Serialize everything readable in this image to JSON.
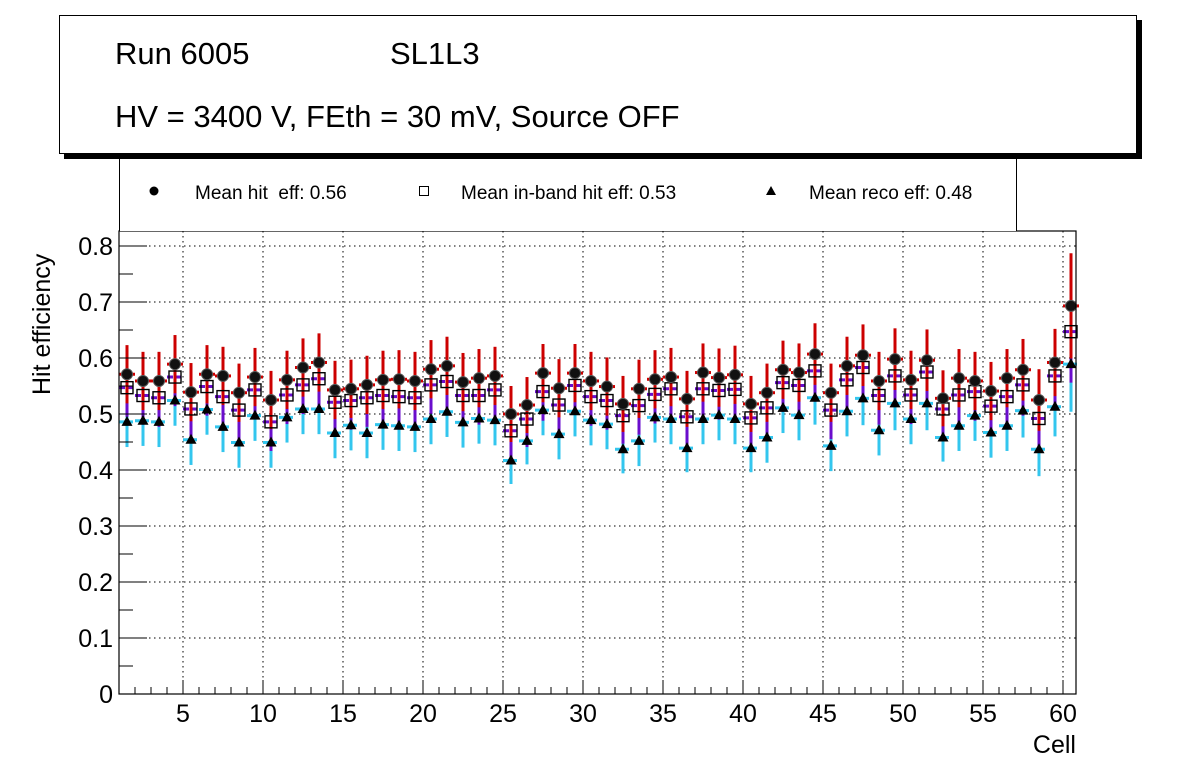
{
  "title_box": {
    "line1_run": "Run 6005",
    "line1_layer": "SL1L3",
    "line2": "HV = 3400 V, FEth = 30 mV, Source OFF"
  },
  "legend": {
    "items": [
      {
        "label": "Mean hit  eff: 0.56",
        "marker": "filled-circle"
      },
      {
        "label": "Mean in-band hit eff: 0.53",
        "marker": "open-square"
      },
      {
        "label": "Mean reco eff: 0.48",
        "marker": "filled-triangle"
      }
    ]
  },
  "chart_data": {
    "type": "scatter",
    "title": "Run 6005 SL1L3 — HV = 3400 V, FEth = 30 mV, Source OFF",
    "xlabel": "Cell",
    "ylabel": "Hit efficiency",
    "xlim": [
      1,
      61.3
    ],
    "ylim": [
      0,
      0.825
    ],
    "x_ticks": [
      5,
      10,
      15,
      20,
      25,
      30,
      35,
      40,
      45,
      50,
      55,
      60
    ],
    "y_ticks": [
      0,
      0.1,
      0.2,
      0.3,
      0.4,
      0.5,
      0.6,
      0.7,
      0.8
    ],
    "y_tick_labels": [
      "0",
      "0.1",
      "0.2",
      "0.3",
      "0.4",
      "0.5",
      "0.6",
      "0.7",
      "0.8"
    ],
    "grid": true,
    "legend_position": "top",
    "x": [
      1,
      2,
      3,
      4,
      5,
      6,
      7,
      8,
      9,
      10,
      11,
      12,
      13,
      14,
      15,
      16,
      17,
      18,
      19,
      20,
      21,
      22,
      23,
      24,
      25,
      26,
      27,
      28,
      29,
      30,
      31,
      32,
      33,
      34,
      35,
      36,
      37,
      38,
      39,
      40,
      41,
      42,
      43,
      44,
      45,
      46,
      47,
      48,
      49,
      50,
      51,
      52,
      53,
      54,
      55,
      56,
      57,
      58,
      59,
      60
    ],
    "series": [
      {
        "name": "Mean hit  eff: 0.56",
        "marker": "filled-circle",
        "error_color": "#cc0000",
        "values": [
          0.571,
          0.559,
          0.559,
          0.589,
          0.539,
          0.571,
          0.568,
          0.538,
          0.566,
          0.525,
          0.561,
          0.583,
          0.592,
          0.543,
          0.545,
          0.552,
          0.561,
          0.562,
          0.559,
          0.58,
          0.586,
          0.557,
          0.564,
          0.568,
          0.5,
          0.516,
          0.573,
          0.546,
          0.573,
          0.559,
          0.549,
          0.518,
          0.545,
          0.562,
          0.566,
          0.527,
          0.574,
          0.565,
          0.57,
          0.518,
          0.538,
          0.579,
          0.574,
          0.607,
          0.538,
          0.586,
          0.605,
          0.559,
          0.598,
          0.561,
          0.596,
          0.528,
          0.564,
          0.559,
          0.541,
          0.564,
          0.579,
          0.525,
          0.592,
          0.693
        ],
        "errors": [
          0.052,
          0.052,
          0.052,
          0.052,
          0.052,
          0.052,
          0.052,
          0.052,
          0.052,
          0.052,
          0.052,
          0.052,
          0.052,
          0.052,
          0.052,
          0.052,
          0.052,
          0.052,
          0.052,
          0.052,
          0.052,
          0.052,
          0.052,
          0.052,
          0.05,
          0.05,
          0.052,
          0.052,
          0.052,
          0.052,
          0.052,
          0.05,
          0.052,
          0.052,
          0.052,
          0.05,
          0.052,
          0.052,
          0.052,
          0.05,
          0.052,
          0.052,
          0.052,
          0.055,
          0.052,
          0.052,
          0.055,
          0.052,
          0.055,
          0.052,
          0.055,
          0.05,
          0.052,
          0.052,
          0.052,
          0.052,
          0.055,
          0.055,
          0.06,
          0.094
        ]
      },
      {
        "name": "Mean in-band hit eff: 0.53",
        "marker": "open-square",
        "error_color": "#6a0dcc",
        "values": [
          0.547,
          0.533,
          0.529,
          0.566,
          0.509,
          0.549,
          0.531,
          0.507,
          0.543,
          0.486,
          0.534,
          0.552,
          0.563,
          0.521,
          0.524,
          0.529,
          0.533,
          0.531,
          0.529,
          0.552,
          0.558,
          0.533,
          0.533,
          0.543,
          0.47,
          0.491,
          0.54,
          0.516,
          0.551,
          0.531,
          0.524,
          0.497,
          0.515,
          0.535,
          0.545,
          0.495,
          0.545,
          0.542,
          0.544,
          0.493,
          0.511,
          0.556,
          0.551,
          0.577,
          0.507,
          0.561,
          0.583,
          0.533,
          0.568,
          0.534,
          0.575,
          0.509,
          0.534,
          0.54,
          0.514,
          0.531,
          0.552,
          0.492,
          0.568,
          0.647
        ],
        "errors": [
          0.052,
          0.052,
          0.052,
          0.052,
          0.052,
          0.052,
          0.052,
          0.052,
          0.052,
          0.052,
          0.052,
          0.052,
          0.052,
          0.052,
          0.052,
          0.052,
          0.052,
          0.052,
          0.052,
          0.052,
          0.052,
          0.052,
          0.052,
          0.052,
          0.05,
          0.05,
          0.052,
          0.052,
          0.052,
          0.052,
          0.052,
          0.05,
          0.052,
          0.052,
          0.052,
          0.05,
          0.052,
          0.052,
          0.052,
          0.05,
          0.052,
          0.052,
          0.052,
          0.055,
          0.052,
          0.052,
          0.055,
          0.052,
          0.055,
          0.052,
          0.055,
          0.05,
          0.052,
          0.052,
          0.052,
          0.052,
          0.055,
          0.055,
          0.06,
          0.091
        ]
      },
      {
        "name": "Mean reco eff: 0.48",
        "marker": "filled-triangle",
        "error_color": "#33c6ee",
        "values": [
          0.486,
          0.488,
          0.486,
          0.524,
          0.454,
          0.508,
          0.477,
          0.449,
          0.497,
          0.449,
          0.494,
          0.509,
          0.509,
          0.466,
          0.48,
          0.466,
          0.481,
          0.479,
          0.477,
          0.491,
          0.504,
          0.485,
          0.492,
          0.489,
          0.417,
          0.452,
          0.507,
          0.464,
          0.505,
          0.489,
          0.482,
          0.437,
          0.452,
          0.494,
          0.491,
          0.439,
          0.491,
          0.498,
          0.491,
          0.439,
          0.458,
          0.511,
          0.498,
          0.529,
          0.443,
          0.505,
          0.528,
          0.471,
          0.519,
          0.491,
          0.519,
          0.458,
          0.479,
          0.497,
          0.467,
          0.479,
          0.506,
          0.437,
          0.513,
          0.589
        ],
        "errors": [
          0.045,
          0.045,
          0.045,
          0.045,
          0.045,
          0.045,
          0.045,
          0.045,
          0.045,
          0.045,
          0.045,
          0.045,
          0.045,
          0.045,
          0.045,
          0.045,
          0.045,
          0.045,
          0.045,
          0.045,
          0.045,
          0.045,
          0.045,
          0.045,
          0.042,
          0.042,
          0.045,
          0.045,
          0.045,
          0.045,
          0.045,
          0.043,
          0.045,
          0.045,
          0.045,
          0.043,
          0.045,
          0.045,
          0.045,
          0.043,
          0.045,
          0.045,
          0.045,
          0.048,
          0.045,
          0.045,
          0.048,
          0.045,
          0.048,
          0.045,
          0.048,
          0.043,
          0.045,
          0.045,
          0.045,
          0.045,
          0.048,
          0.048,
          0.053,
          0.085
        ]
      }
    ]
  }
}
